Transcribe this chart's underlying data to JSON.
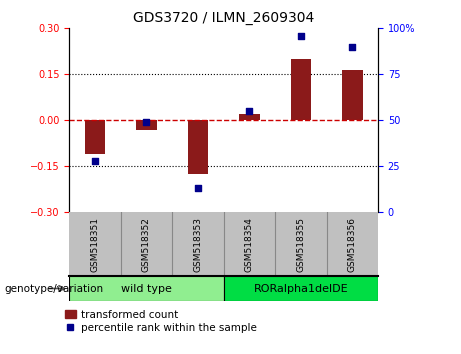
{
  "title": "GDS3720 / ILMN_2609304",
  "samples": [
    "GSM518351",
    "GSM518352",
    "GSM518353",
    "GSM518354",
    "GSM518355",
    "GSM518356"
  ],
  "transformed_counts": [
    -0.11,
    -0.03,
    -0.175,
    0.02,
    0.2,
    0.165
  ],
  "percentile_ranks": [
    28,
    49,
    13,
    55,
    96,
    90
  ],
  "groups": [
    {
      "label": "wild type",
      "indices": [
        0,
        1,
        2
      ],
      "color": "#90EE90"
    },
    {
      "label": "RORalpha1delDE",
      "indices": [
        3,
        4,
        5
      ],
      "color": "#00DD44"
    }
  ],
  "left_ylim": [
    -0.3,
    0.3
  ],
  "right_ylim": [
    0,
    100
  ],
  "left_yticks": [
    -0.3,
    -0.15,
    0,
    0.15,
    0.3
  ],
  "right_yticks": [
    0,
    25,
    50,
    75,
    100
  ],
  "bar_color": "#8B1A1A",
  "dot_color": "#00008B",
  "zero_line_color": "#CC0000",
  "dotted_line_color": "#000000",
  "background_plot": "#FFFFFF",
  "background_samples": "#C0C0C0",
  "legend_bar_label": "transformed count",
  "legend_dot_label": "percentile rank within the sample",
  "genotype_label": "genotype/variation"
}
